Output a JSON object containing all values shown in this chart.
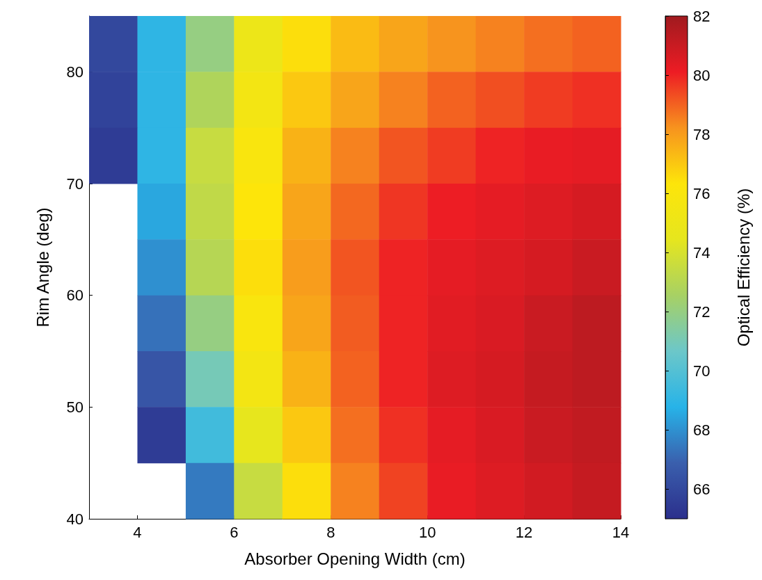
{
  "chart_data": {
    "type": "heatmap",
    "xlabel": "Absorber Opening Width (cm)",
    "ylabel": "Rim Angle (deg)",
    "clabel": "Optical Efficiency (%)",
    "x": [
      3.5,
      4.5,
      5.5,
      6.5,
      7.5,
      8.5,
      9.5,
      10.5,
      11.5,
      12.5,
      13.5
    ],
    "xlim": [
      3,
      14
    ],
    "xticks": [
      4,
      6,
      8,
      10,
      12,
      14
    ],
    "ylim": [
      40,
      85
    ],
    "yticks": [
      40,
      50,
      60,
      70,
      80
    ],
    "clim": [
      65,
      82
    ],
    "cticks": [
      66,
      68,
      70,
      72,
      74,
      76,
      78,
      80,
      82
    ],
    "colors": [
      "#2b2f8c",
      "#3a5fad",
      "#27b3e8",
      "#6cc7c9",
      "#a7d164",
      "#e6e61e",
      "#fde50a",
      "#f7931e",
      "#ed1c24",
      "#a01a1f"
    ],
    "cells": [
      [
        66,
        69,
        72,
        75,
        76.5,
        77.3,
        77.8,
        78.2,
        78.5,
        78.8,
        79
      ],
      [
        65.8,
        69,
        72.8,
        75.5,
        77,
        77.8,
        78.5,
        79,
        79.3,
        79.6,
        79.8
      ],
      [
        65.5,
        69,
        73.5,
        76,
        77.5,
        78.5,
        79.2,
        79.6,
        80,
        80.2,
        80.3
      ],
      [
        null,
        68.5,
        73.3,
        76.3,
        77.8,
        78.9,
        79.7,
        80.1,
        80.3,
        80.5,
        80.7
      ],
      [
        null,
        68,
        73,
        76.5,
        78,
        79.2,
        80,
        80.3,
        80.5,
        80.7,
        81
      ],
      [
        null,
        67.3,
        72,
        76,
        77.8,
        79.1,
        80,
        80.4,
        80.6,
        81,
        81.3
      ],
      [
        null,
        66.5,
        71,
        75.5,
        77.5,
        79,
        80,
        80.5,
        80.7,
        81.1,
        81.3
      ],
      [
        null,
        65.5,
        69.5,
        74.5,
        77,
        78.8,
        79.8,
        80.3,
        80.6,
        81,
        81.2
      ],
      [
        null,
        null,
        67.5,
        73.5,
        76.5,
        78.5,
        79.5,
        80.2,
        80.5,
        80.8,
        81.1
      ]
    ]
  }
}
